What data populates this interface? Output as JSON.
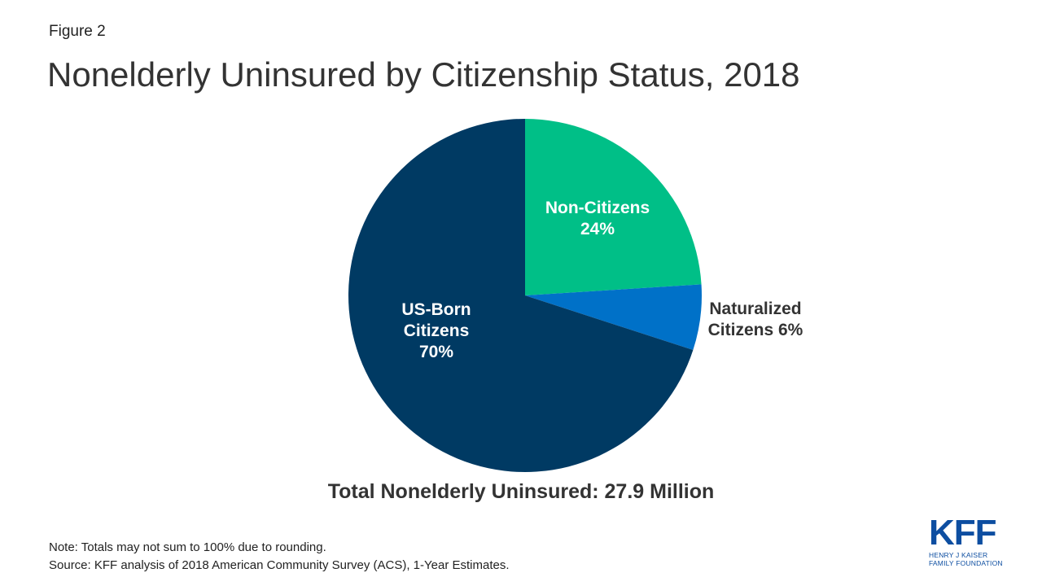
{
  "figure_label": "Figure 2",
  "footer": {
    "note": "Note: Totals may not sum to 100% due to rounding.",
    "source": "Source: KFF analysis of 2018 American Community Survey (ACS), 1-Year Estimates."
  },
  "logo": {
    "letters": "KFF",
    "line1": "HENRY J KAISER",
    "line2": "FAMILY FOUNDATION"
  },
  "colors": {
    "us_born": "#003a63",
    "non_citizens": "#00bf87",
    "naturalized": "#0071c8",
    "brand": "#0d4ea1"
  },
  "chart_data": {
    "type": "pie",
    "title": "Nonelderly Uninsured by Citizenship Status, 2018",
    "subtitle": "Total Nonelderly Uninsured: 27.9 Million",
    "slices": [
      {
        "label_lines": [
          "Non-Citizens",
          "24%"
        ],
        "category": "Non-Citizens",
        "value": 24,
        "color": "#00bf87",
        "label_color": "#ffffff"
      },
      {
        "label_lines": [
          "Naturalized",
          "Citizens 6%"
        ],
        "category": "Naturalized Citizens",
        "value": 6,
        "color": "#0071c8",
        "label_color": "#333333"
      },
      {
        "label_lines": [
          "US-Born",
          "Citizens",
          "70%"
        ],
        "category": "US-Born Citizens",
        "value": 70,
        "color": "#003a63",
        "label_color": "#ffffff"
      }
    ]
  }
}
